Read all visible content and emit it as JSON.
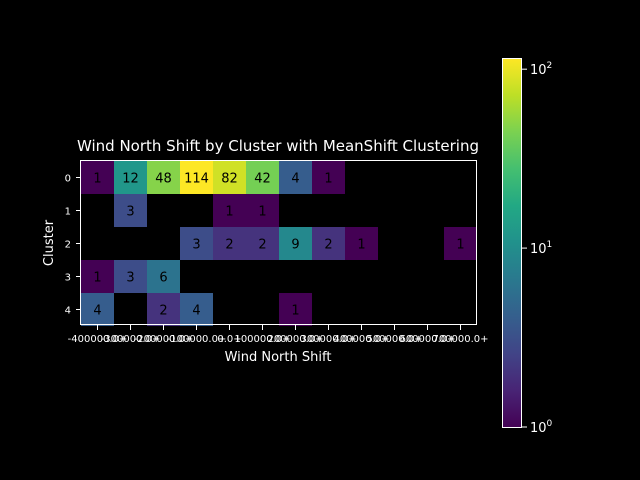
{
  "chart_data": {
    "type": "heatmap",
    "title": "Wind North Shift by Cluster with MeanShift Clustering",
    "xlabel": "Wind North Shift",
    "ylabel": "Cluster",
    "x_tick_labels": [
      "-400000.0+",
      "-300000.0+",
      "-200000.0+",
      "-100000.0+",
      "0.0+",
      "100000.0+",
      "200000.0+",
      "300000.0+",
      "400000.0+",
      "500000.0+",
      "600000.0+",
      "700000.0+"
    ],
    "y_tick_labels": [
      "0",
      "1",
      "2",
      "3",
      "4"
    ],
    "values": [
      [
        1,
        12,
        48,
        114,
        82,
        42,
        4,
        1,
        null,
        null,
        null,
        null
      ],
      [
        null,
        3,
        null,
        null,
        1,
        1,
        null,
        null,
        null,
        null,
        null,
        null
      ],
      [
        null,
        null,
        null,
        3,
        2,
        2,
        9,
        2,
        1,
        null,
        null,
        1
      ],
      [
        1,
        3,
        6,
        null,
        null,
        null,
        null,
        null,
        null,
        null,
        null,
        null
      ],
      [
        4,
        null,
        2,
        4,
        null,
        null,
        1,
        null,
        null,
        null,
        null,
        null
      ]
    ],
    "color_scale": "viridis",
    "scale": "log",
    "vmin": 1,
    "vmax": 114,
    "colorbar_ticks": [
      {
        "base": "10",
        "exp": "0",
        "value": 1
      },
      {
        "base": "10",
        "exp": "1",
        "value": 10
      },
      {
        "base": "10",
        "exp": "2",
        "value": 100
      }
    ],
    "background": "#000000",
    "foreground": "#ffffff"
  }
}
